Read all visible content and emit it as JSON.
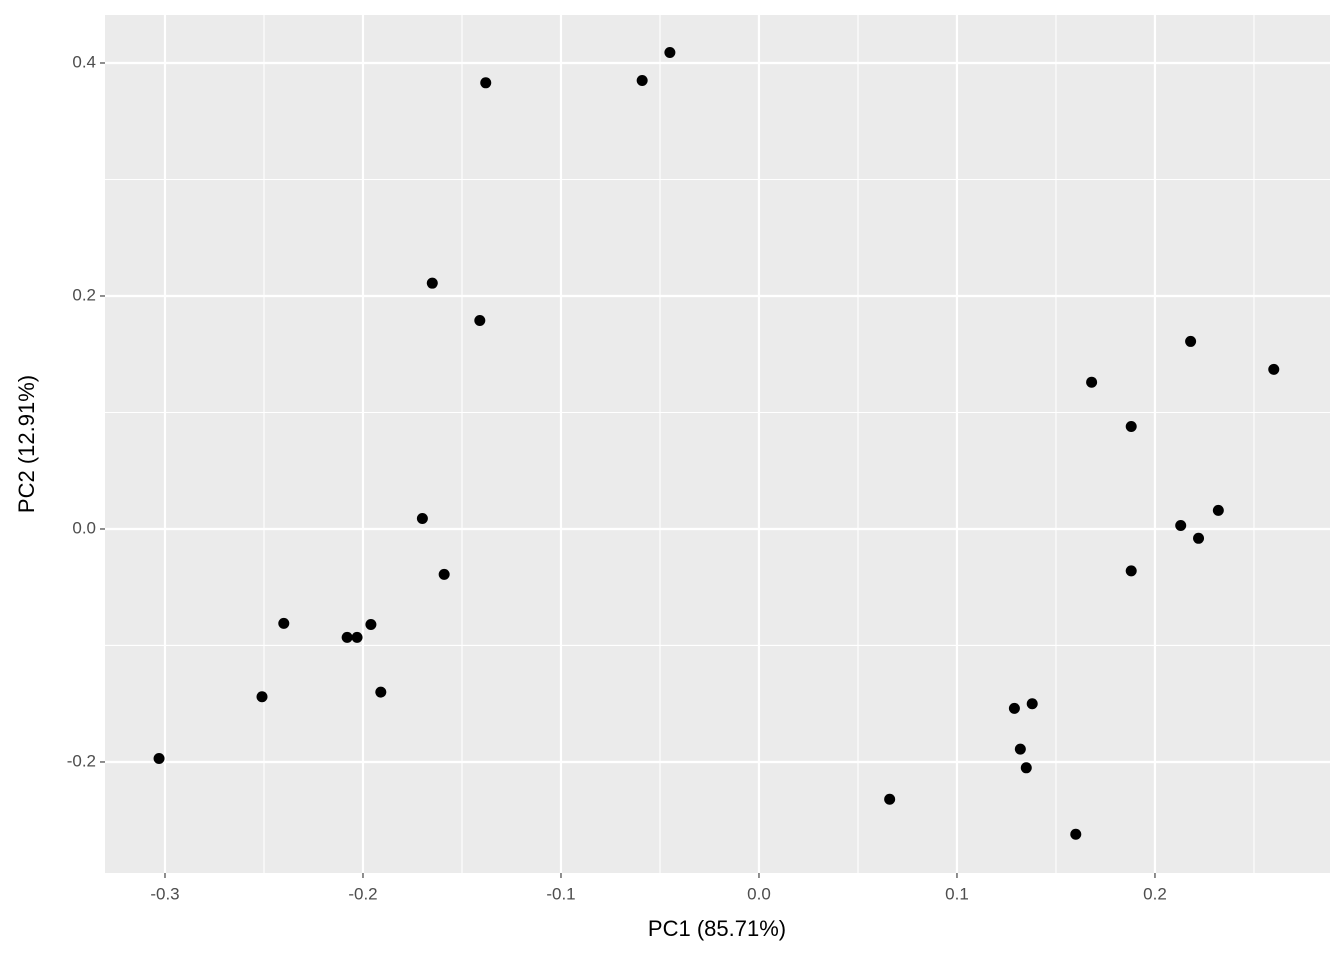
{
  "chart_data": {
    "type": "scatter",
    "x_label": "PC1 (85.71%)",
    "y_label": "PC2 (12.91%)",
    "color": "#000000",
    "grid": true,
    "xlim": [
      -0.3303,
      0.2884
    ],
    "ylim": [
      -0.2953,
      0.4412
    ],
    "xticks": [
      -0.3,
      -0.2,
      -0.1,
      {
        "value": 0,
        "label": "0.0"
      },
      0.1,
      0.2
    ],
    "yticks": [
      -0.2,
      {
        "value": 0,
        "label": "0.0"
      },
      0.2,
      0.4
    ],
    "x": [
      -0.303,
      -0.251,
      -0.24,
      -0.208,
      -0.203,
      -0.196,
      -0.191,
      -0.17,
      -0.159,
      -0.165,
      -0.141,
      -0.138,
      -0.059,
      -0.045,
      0.066,
      0.129,
      0.138,
      0.132,
      0.135,
      0.16,
      0.168,
      0.188,
      0.188,
      0.213,
      0.222,
      0.218,
      0.232,
      0.26
    ],
    "values": [
      -0.197,
      -0.144,
      -0.081,
      -0.093,
      -0.093,
      -0.082,
      -0.14,
      0.009,
      -0.039,
      0.211,
      0.179,
      0.383,
      0.385,
      0.409,
      -0.232,
      -0.154,
      -0.15,
      -0.189,
      -0.205,
      -0.262,
      0.126,
      0.088,
      -0.036,
      0.003,
      -0.008,
      0.161,
      0.016,
      0.137
    ]
  }
}
